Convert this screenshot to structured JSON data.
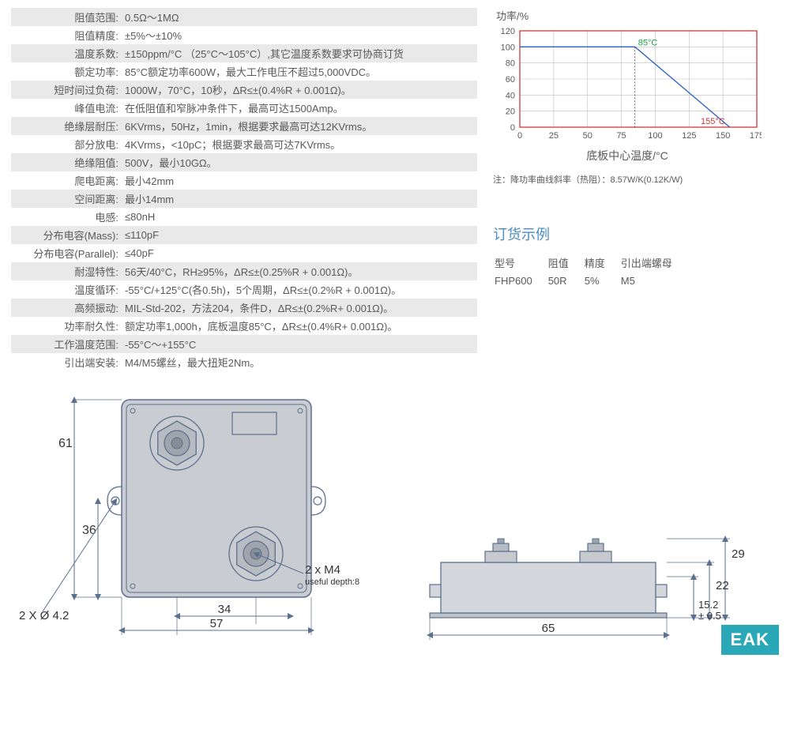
{
  "specs": [
    {
      "label": "阻值范围:",
      "value": "0.5Ω～1MΩ"
    },
    {
      "label": "阻值精度:",
      "value": "±5%～±10%"
    },
    {
      "label": "温度系数:",
      "value": "±150ppm/°C （25°C～105°C）,其它温度系数要求可协商订货"
    },
    {
      "label": "额定功率:",
      "value": "85°C额定功率600W，最大工作电压不超过5,000VDC。"
    },
    {
      "label": "短时间过负荷:",
      "value": "1000W，70°C，10秒，ΔR≤±(0.4%R + 0.001Ω)。"
    },
    {
      "label": "峰值电流:",
      "value": "在低阻值和窄脉冲条件下，最高可达1500Amp。"
    },
    {
      "label": "绝缘层耐压:",
      "value": "6KVrms，50Hz，1min，根据要求最高可达12KVrms。"
    },
    {
      "label": "部分放电:",
      "value": "4KVrms，<10pC；根据要求最高可达7KVrms。"
    },
    {
      "label": "绝缘阻值:",
      "value": "500V，最小10GΩ。"
    },
    {
      "label": "爬电距离:",
      "value": "最小42mm"
    },
    {
      "label": "空间距离:",
      "value": "最小14mm"
    },
    {
      "label": "电感:",
      "value": "≤80nH"
    },
    {
      "label": "分布电容(Mass):",
      "value": "≤110pF"
    },
    {
      "label": "分布电容(Parallel):",
      "value": "≤40pF"
    },
    {
      "label": "耐湿特性:",
      "value": "56天/40°C，RH≥95%，ΔR≤±(0.25%R + 0.001Ω)。"
    },
    {
      "label": "温度循环:",
      "value": "-55°C/+125°C(各0.5h)，5个周期，ΔR≤±(0.2%R + 0.001Ω)。"
    },
    {
      "label": "高频振动:",
      "value": "MIL-Std-202，方法204，条件D，ΔR≤±(0.2%R+ 0.001Ω)。"
    },
    {
      "label": "功率耐久性:",
      "value": "额定功率1,000h，底板温度85°C，ΔR≤±(0.4%R+ 0.001Ω)。"
    },
    {
      "label": "工作温度范围:",
      "value": "-55°C～+155°C"
    },
    {
      "label": "引出端安装:",
      "value": "M4/M5螺丝，最大扭矩2Nm。"
    }
  ],
  "chart": {
    "title": "功率/%",
    "x_axis_label": "底板中心温度/°C",
    "note": "注：降功率曲线斜率（热阻）：8.57W/K(0.12K/W)",
    "y_ticks": [
      0,
      20,
      40,
      60,
      80,
      100,
      120
    ],
    "x_ticks": [
      0,
      25,
      50,
      75,
      100,
      125,
      150,
      175
    ],
    "xlim": [
      0,
      175
    ],
    "ylim": [
      0,
      120
    ],
    "line_points": [
      [
        0,
        100
      ],
      [
        85,
        100
      ],
      [
        155,
        0
      ]
    ],
    "line_color": "#2d5fc4",
    "line_width": 1.3,
    "border_color": "#d13a3a",
    "grid_color": "#bfbfbf",
    "marker1": {
      "x": 85,
      "text": "85°C",
      "color": "#1a9e4b"
    },
    "marker2": {
      "x": 155,
      "text": "155°C",
      "color": "#d13a3a"
    },
    "plot_bg": "#ffffff"
  },
  "order": {
    "title": "订货示例",
    "headers": [
      "型号",
      "阻值",
      "精度",
      "引出端螺母"
    ],
    "row": [
      "FHP600",
      "50R",
      "5%",
      "M5"
    ]
  },
  "drawing_top": {
    "dims": {
      "h61": "61",
      "h36": "36",
      "w34": "34",
      "w57": "57",
      "hole": "2 X Ø 4.2",
      "thread": "2 x M4",
      "thread_note": "useful depth:8"
    },
    "stroke": "#5b6f8f",
    "fill": "#c9cdd2"
  },
  "drawing_side": {
    "dims": {
      "h29": "29",
      "h22": "22",
      "h152": "15.2",
      "tol": "± 0.5",
      "w65": "65"
    },
    "stroke": "#5b6f8f",
    "fill": "#d3d6da"
  },
  "logo": "EAK"
}
